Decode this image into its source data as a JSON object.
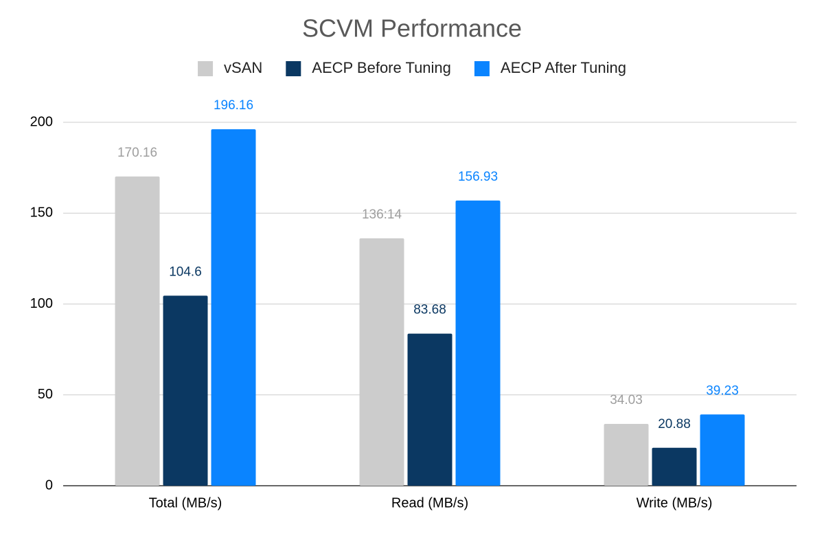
{
  "chart_data": {
    "type": "bar",
    "title": "SCVM Performance",
    "categories": [
      "Total (MB/s)",
      "Read (MB/s)",
      "Write (MB/s)"
    ],
    "series": [
      {
        "name": "vSAN",
        "color": "#cccccc",
        "values": [
          170.16,
          136.14,
          34.03
        ],
        "value_labels": [
          "170.16",
          "136:14",
          "34.03"
        ]
      },
      {
        "name": "AECP Before Tuning",
        "color": "#0b3862",
        "values": [
          104.6,
          83.68,
          20.88
        ]
      },
      {
        "name": "AECP After Tuning",
        "color": "#0a84ff",
        "values": [
          196.16,
          156.93,
          39.23
        ]
      }
    ],
    "ylim": [
      0,
      200
    ],
    "yticks": [
      0,
      50,
      100,
      150,
      200
    ],
    "grid": true,
    "legend": "top"
  }
}
